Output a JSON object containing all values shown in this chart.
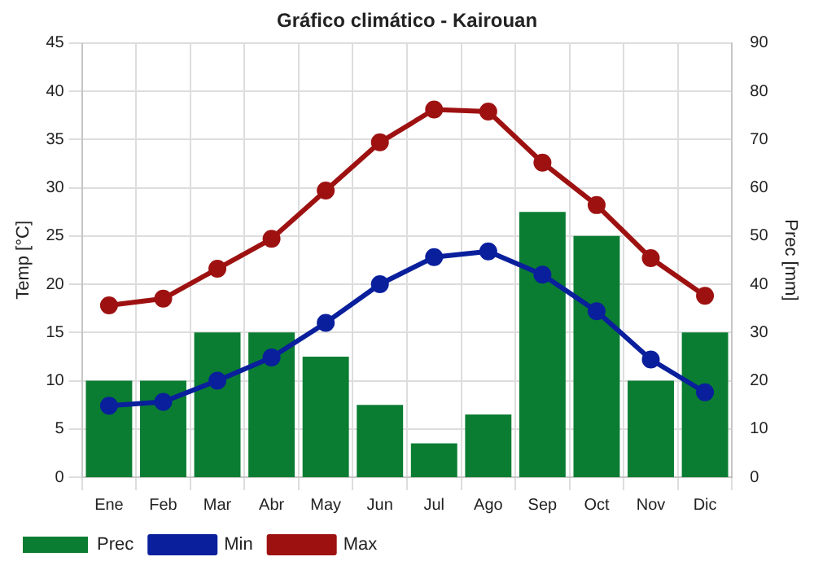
{
  "chart_data": {
    "type": "bar",
    "title": "Gráfico climático - Kairouan",
    "ylabel": "Temp [°C]",
    "y2label": "Prec [mm]",
    "categories": [
      "Ene",
      "Feb",
      "Mar",
      "Abr",
      "May",
      "Jun",
      "Jul",
      "Ago",
      "Sep",
      "Oct",
      "Nov",
      "Dic"
    ],
    "series": [
      {
        "name": "Prec",
        "axis": "y2",
        "color": "#0a7d32",
        "values": [
          20,
          20,
          30,
          30,
          25,
          15,
          7,
          13,
          55,
          50,
          20,
          30
        ]
      },
      {
        "name": "Min",
        "type": "line",
        "color": "#0a1f9c",
        "values": [
          7.4,
          7.8,
          10,
          12.4,
          16,
          20,
          22.8,
          23.4,
          21,
          17.2,
          12.2,
          8.8
        ]
      },
      {
        "name": "Max",
        "type": "line",
        "color": "#9e1111",
        "values": [
          17.8,
          18.5,
          21.6,
          24.7,
          29.7,
          34.7,
          38.1,
          37.9,
          32.6,
          28.2,
          22.7,
          18.8
        ]
      }
    ],
    "ylim": [
      0,
      45
    ],
    "yticks": [
      0,
      5,
      10,
      15,
      20,
      25,
      30,
      35,
      40,
      45
    ],
    "y2lim": [
      0,
      90
    ],
    "y2ticks": [
      0,
      10,
      20,
      30,
      40,
      50,
      60,
      70,
      80,
      90
    ],
    "grid": true,
    "legend": "bottom",
    "marker": "circle",
    "line_style": "solid"
  }
}
